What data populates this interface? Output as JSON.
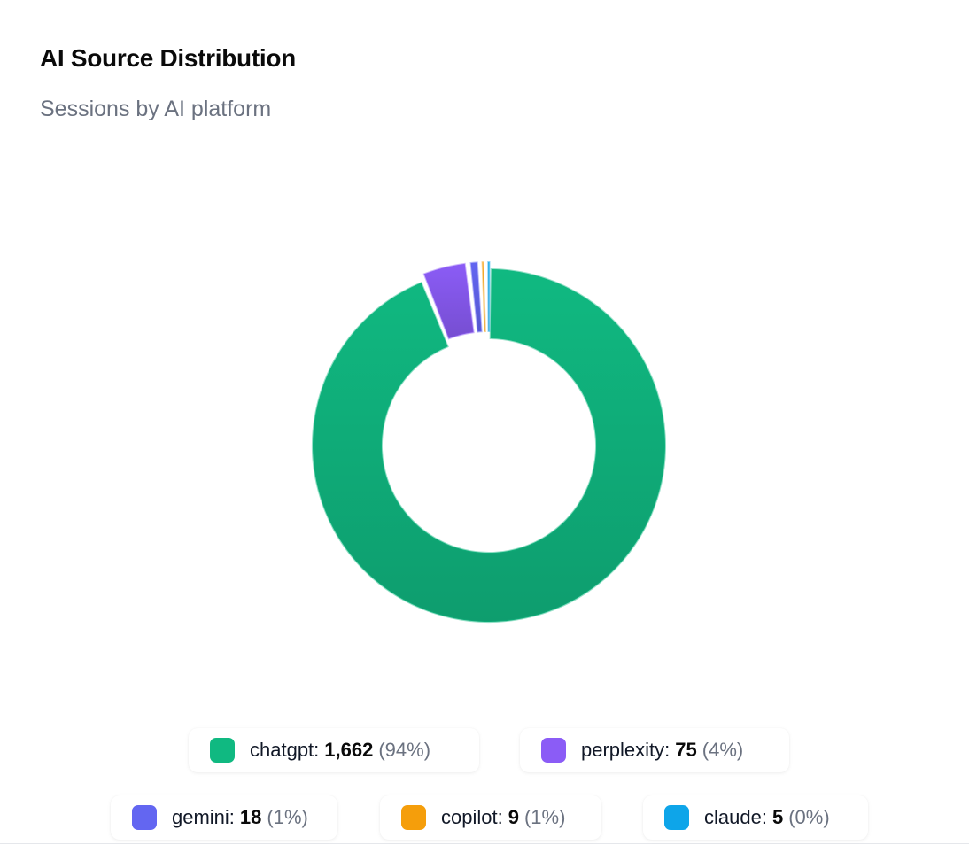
{
  "card": {
    "title": "AI Source Distribution",
    "subtitle": "Sessions by AI platform"
  },
  "chart_data": {
    "type": "pie",
    "variant": "donut",
    "title": "AI Source Distribution",
    "subtitle": "Sessions by AI platform",
    "categories": [
      "chatgpt",
      "perplexity",
      "gemini",
      "copilot",
      "claude"
    ],
    "values": [
      1662,
      75,
      18,
      9,
      5
    ],
    "percent_labels": [
      "(94%)",
      "(4%)",
      "(1%)",
      "(1%)",
      "(0%)"
    ],
    "value_labels": [
      "1,662",
      "75",
      "18",
      "9",
      "5"
    ],
    "colors": [
      "#10b981",
      "#8b5cf6",
      "#6366f1",
      "#f59e0b",
      "#0ea5e9"
    ],
    "legend_position": "bottom"
  }
}
